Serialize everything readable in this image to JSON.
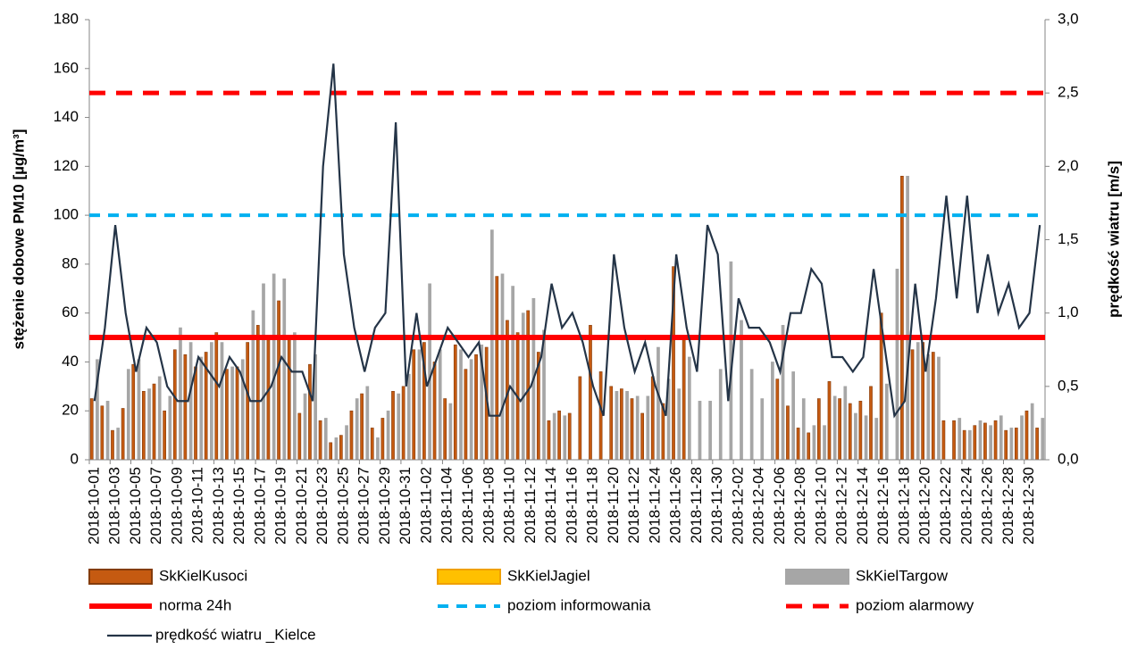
{
  "chart_data": {
    "type": "bar",
    "ylabel": "stężenie dobowe PM10 [µg/m³]",
    "y2label": "prędkość wiatru [m/s]",
    "categories": [
      "2018-10-01",
      null,
      "2018-10-03",
      null,
      "2018-10-05",
      null,
      "2018-10-07",
      null,
      "2018-10-09",
      null,
      "2018-10-11",
      null,
      "2018-10-13",
      null,
      "2018-10-15",
      null,
      "2018-10-17",
      null,
      "2018-10-19",
      null,
      "2018-10-21",
      null,
      "2018-10-23",
      null,
      "2018-10-25",
      null,
      "2018-10-27",
      null,
      "2018-10-29",
      null,
      "2018-10-31",
      null,
      "2018-11-02",
      null,
      "2018-11-04",
      null,
      "2018-11-06",
      null,
      "2018-11-08",
      null,
      "2018-11-10",
      null,
      "2018-11-12",
      null,
      "2018-11-14",
      null,
      "2018-11-16",
      null,
      "2018-11-18",
      null,
      "2018-11-20",
      null,
      "2018-11-22",
      null,
      "2018-11-24",
      null,
      "2018-11-26",
      null,
      "2018-11-28",
      null,
      "2018-11-30",
      null,
      "2018-12-02",
      null,
      "2018-12-04",
      null,
      "2018-12-06",
      null,
      "2018-12-08",
      null,
      "2018-12-10",
      null,
      "2018-12-12",
      null,
      "2018-12-14",
      null,
      "2018-12-16",
      null,
      "2018-12-18",
      null,
      "2018-12-20",
      null,
      "2018-12-22",
      null,
      "2018-12-24",
      null,
      "2018-12-26",
      null,
      "2018-12-28",
      null,
      "2018-12-30",
      null
    ],
    "series": [
      {
        "name": "SkKielKusoci",
        "color": "#c55a11",
        "edge": "#843c0c",
        "values": [
          25,
          22,
          12,
          21,
          39,
          28,
          31,
          20,
          45,
          43,
          38,
          44,
          52,
          37,
          38,
          48,
          55,
          50,
          65,
          50,
          19,
          39,
          16,
          7,
          10,
          20,
          27,
          13,
          17,
          28,
          30,
          45,
          48,
          40,
          25,
          47,
          37,
          43,
          46,
          75,
          57,
          52,
          61,
          44,
          16,
          20,
          19,
          34,
          55,
          36,
          30,
          29,
          25,
          19,
          34,
          23,
          79,
          50,
          null,
          null,
          null,
          null,
          null,
          null,
          null,
          null,
          33,
          22,
          13,
          11,
          25,
          32,
          25,
          23,
          24,
          30,
          60,
          null,
          116,
          45,
          48,
          44,
          16,
          16,
          12,
          14,
          15,
          16,
          12,
          13,
          20,
          13
        ]
      },
      {
        "name": "SkKielJagiel",
        "color": "#ffc000",
        "edge": "#f0a000",
        "values": [
          null,
          null,
          null,
          null,
          null,
          null,
          null,
          null,
          null,
          null,
          null,
          null,
          null,
          null,
          null,
          null,
          null,
          null,
          null,
          null,
          null,
          null,
          null,
          null,
          null,
          null,
          null,
          null,
          null,
          null,
          null,
          null,
          null,
          null,
          null,
          null,
          null,
          null,
          null,
          null,
          null,
          null,
          null,
          null,
          null,
          null,
          null,
          null,
          null,
          null,
          null,
          null,
          null,
          null,
          null,
          null,
          null,
          null,
          null,
          null,
          null,
          null,
          null,
          null,
          null,
          null,
          null,
          null,
          null,
          null,
          null,
          null,
          null,
          null,
          null,
          null,
          null,
          null,
          null,
          null,
          null,
          null,
          null,
          null,
          null,
          null,
          null,
          null,
          null,
          null,
          null,
          null
        ]
      },
      {
        "name": "SkKielTargow",
        "color": "#a6a6a6",
        "edge": "#a6a6a6",
        "values": [
          41,
          24,
          13,
          37,
          41,
          29,
          34,
          26,
          54,
          48,
          42,
          48,
          48,
          38,
          41,
          61,
          72,
          76,
          74,
          52,
          27,
          43,
          17,
          9,
          14,
          25,
          30,
          9,
          20,
          27,
          35,
          45,
          72,
          45,
          23,
          45,
          41,
          47,
          94,
          76,
          71,
          60,
          66,
          53,
          19,
          18,
          null,
          null,
          null,
          null,
          28,
          28,
          26,
          26,
          46,
          33,
          29,
          42,
          24,
          24,
          37,
          81,
          57,
          37,
          25,
          40,
          55,
          36,
          25,
          14,
          14,
          26,
          30,
          19,
          18,
          17,
          31,
          78,
          116,
          48,
          43,
          42,
          null,
          17,
          12,
          16,
          14,
          18,
          13,
          18,
          23,
          17
        ]
      },
      {
        "name": "prędkość wiatru _Kielce",
        "color": "#243447",
        "axis": "y2",
        "kind": "line",
        "values": [
          0.4,
          0.9,
          1.6,
          1.0,
          0.6,
          0.9,
          0.8,
          0.5,
          0.4,
          0.4,
          0.7,
          0.6,
          0.5,
          0.7,
          0.6,
          0.4,
          0.4,
          0.5,
          0.7,
          0.6,
          0.6,
          0.4,
          2.0,
          2.7,
          1.4,
          0.9,
          0.6,
          0.9,
          1.0,
          2.3,
          0.5,
          1.0,
          0.5,
          0.7,
          0.9,
          0.8,
          0.7,
          0.8,
          0.3,
          0.3,
          0.5,
          0.4,
          0.5,
          0.7,
          1.2,
          0.9,
          1.0,
          0.8,
          0.5,
          0.3,
          1.4,
          0.9,
          0.6,
          0.8,
          0.5,
          0.3,
          1.4,
          0.9,
          0.6,
          1.6,
          1.4,
          0.4,
          1.1,
          0.9,
          0.9,
          0.8,
          0.6,
          1.0,
          1.0,
          1.3,
          1.2,
          0.7,
          0.7,
          0.6,
          0.7,
          1.3,
          0.8,
          0.3,
          0.4,
          1.2,
          0.6,
          1.1,
          1.8,
          1.1,
          1.8,
          1.0,
          1.4,
          1.0,
          1.2,
          0.9,
          1.0,
          1.6
        ]
      }
    ],
    "hlines": [
      {
        "name": "norma 24h",
        "color": "#ff0000",
        "value": 50,
        "dash": "solid"
      },
      {
        "name": "poziom informowania",
        "color": "#00b0f0",
        "value": 100,
        "dash": "dashed"
      },
      {
        "name": "poziom alarmowy",
        "color": "#ff0000",
        "value": 150,
        "dash": "dashed"
      }
    ],
    "ylim": [
      0,
      180
    ],
    "yticks": [
      0,
      20,
      40,
      60,
      80,
      100,
      120,
      140,
      160,
      180
    ],
    "y2lim": [
      0,
      3
    ],
    "y2ticks": [
      {
        "value": 0,
        "label": "0,0"
      },
      {
        "value": 0.5,
        "label": "0,5"
      },
      {
        "value": 1,
        "label": "1,0"
      },
      {
        "value": 1.5,
        "label": "1,5"
      },
      {
        "value": 2,
        "label": "2,0"
      },
      {
        "value": 2.5,
        "label": "2,5"
      },
      {
        "value": 3,
        "label": "3,0"
      }
    ]
  }
}
